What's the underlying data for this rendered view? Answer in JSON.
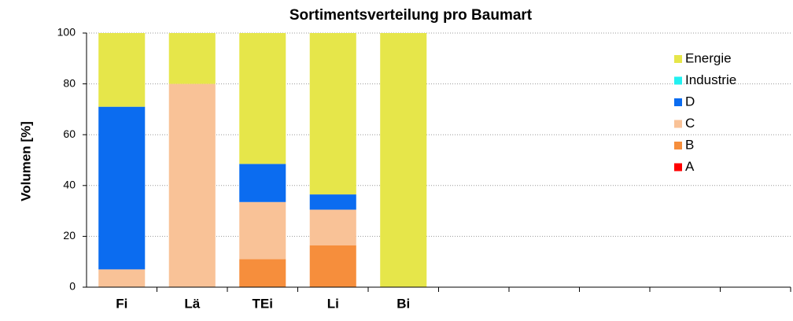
{
  "chart_data": {
    "type": "stacked_bar",
    "title": "Sortimentsverteilung pro Baumart",
    "y_label": "Volumen [%]",
    "categories": [
      "Fi",
      "Lä",
      "TEi",
      "Li",
      "Bi",
      null,
      null,
      null,
      null,
      null
    ],
    "series": [
      {
        "name": "A",
        "color": "#ff0000",
        "values": [
          0,
          0,
          0,
          0,
          0,
          null,
          null,
          null,
          null,
          null
        ]
      },
      {
        "name": "B",
        "color": "#f68e3c",
        "values": [
          0,
          0,
          11,
          16.5,
          0,
          null,
          null,
          null,
          null,
          null
        ]
      },
      {
        "name": "C",
        "color": "#f9c297",
        "values": [
          7,
          80,
          22.5,
          14,
          0,
          null,
          null,
          null,
          null,
          null
        ]
      },
      {
        "name": "D",
        "color": "#0b6cf0",
        "values": [
          64,
          0,
          15,
          6,
          0,
          null,
          null,
          null,
          null,
          null
        ]
      },
      {
        "name": "Industrie",
        "color": "#22f0f0",
        "values": [
          0,
          0,
          0,
          0,
          0,
          null,
          null,
          null,
          null,
          null
        ]
      },
      {
        "name": "Energie",
        "color": "#e6e64a",
        "values": [
          29,
          20,
          51.5,
          63.5,
          100,
          null,
          null,
          null,
          null,
          null
        ]
      }
    ],
    "ylim": [
      0,
      100
    ],
    "yticks": [
      0,
      20,
      40,
      60,
      80,
      100
    ],
    "grid": true,
    "legend": "upper right"
  }
}
